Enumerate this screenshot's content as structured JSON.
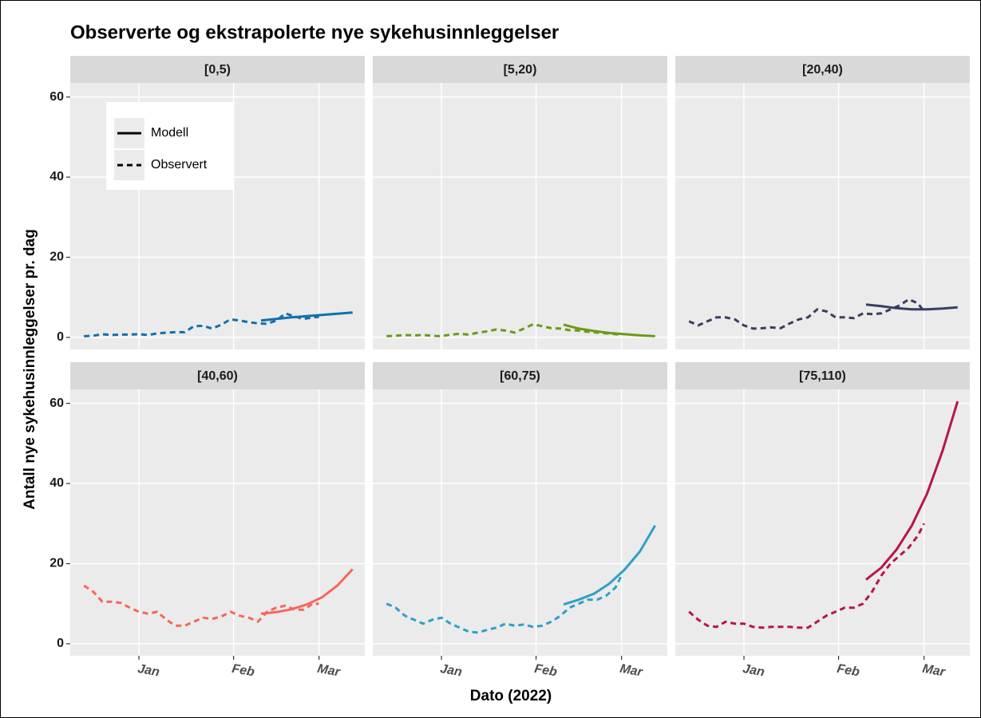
{
  "chart_data": {
    "type": "line",
    "title": "Observerte og ekstrapolerte nye sykehusinnleggelser",
    "x_label": "Dato (2022)",
    "y_label": "Antall nye sykehusinnleggelser pr. dag",
    "legend": "top-left",
    "grid": true,
    "xlim": [
      -22.5,
      74
    ],
    "ylim": [
      -3,
      63.5
    ],
    "xticks": [
      {
        "value": 0,
        "label": "Jan"
      },
      {
        "value": 31,
        "label": "Feb"
      },
      {
        "value": 59,
        "label": "Mar"
      }
    ],
    "yticks": [
      0,
      20,
      40,
      60
    ],
    "panels": [
      {
        "title": "[0,5)",
        "series": [
          {
            "name": "Modell",
            "style": "solid",
            "color": "#1170aa",
            "x": [
              40,
              45,
              50,
              55,
              60,
              65,
              70
            ],
            "values": [
              4.2,
              4.6,
              5.0,
              5.3,
              5.6,
              5.9,
              6.2
            ]
          },
          {
            "name": "Observert",
            "style": "dashed",
            "color": "#1170aa",
            "x": [
              -18,
              -15,
              -12,
              -9,
              -6,
              -3,
              0,
              3,
              6,
              9,
              12,
              15,
              18,
              21,
              24,
              27,
              30,
              33,
              36,
              39,
              42,
              45,
              48,
              51,
              54,
              57,
              59
            ],
            "values": [
              0.3,
              0.4,
              0.8,
              0.6,
              0.7,
              0.7,
              0.8,
              0.6,
              1,
              1.2,
              1.3,
              1.3,
              2.8,
              2.9,
              2.2,
              3.2,
              4.5,
              4.2,
              3.8,
              3.5,
              3.4,
              4.2,
              6,
              5.2,
              4.6,
              5,
              5.1
            ]
          }
        ]
      },
      {
        "title": "[5,20)",
        "series": [
          {
            "name": "Modell",
            "style": "solid",
            "color": "#6b9a1a",
            "x": [
              40,
              45,
              50,
              55,
              60,
              65,
              70
            ],
            "values": [
              3.2,
              2.2,
              1.6,
              1.1,
              0.8,
              0.5,
              0.3
            ]
          },
          {
            "name": "Observert",
            "style": "dashed",
            "color": "#6b9a1a",
            "x": [
              -18,
              -15,
              -12,
              -9,
              -6,
              -3,
              0,
              3,
              6,
              9,
              12,
              15,
              18,
              21,
              24,
              27,
              30,
              33,
              36,
              39,
              42,
              45,
              48,
              51,
              54,
              57,
              59
            ],
            "values": [
              0.3,
              0.4,
              0.6,
              0.5,
              0.6,
              0.4,
              0.3,
              0.7,
              0.9,
              0.7,
              1.2,
              1.5,
              2,
              1.7,
              1.2,
              2.2,
              3.3,
              2.8,
              2.3,
              2.2,
              1.8,
              1.7,
              1.4,
              1.2,
              1.0,
              0.8,
              0.7
            ]
          }
        ]
      },
      {
        "title": "[20,40)",
        "series": [
          {
            "name": "Modell",
            "style": "solid",
            "color": "#383e62",
            "x": [
              40,
              45,
              50,
              55,
              60,
              65,
              70
            ],
            "values": [
              8.2,
              7.8,
              7.3,
              7.0,
              7.0,
              7.2,
              7.5
            ]
          },
          {
            "name": "Observert",
            "style": "dashed",
            "color": "#383e62",
            "x": [
              -18,
              -15,
              -12,
              -9,
              -6,
              -3,
              0,
              3,
              6,
              9,
              12,
              15,
              18,
              21,
              24,
              27,
              30,
              33,
              36,
              39,
              42,
              45,
              48,
              51,
              54,
              57,
              59
            ],
            "values": [
              4,
              3,
              4,
              5,
              5,
              4.5,
              3,
              2.2,
              2.3,
              2.5,
              2.3,
              3.5,
              4.5,
              5,
              7,
              6.5,
              5,
              5,
              4.8,
              6,
              5.8,
              6,
              7,
              8,
              9.5,
              8.5,
              6.5
            ]
          }
        ]
      },
      {
        "title": "[40,60)",
        "series": [
          {
            "name": "Modell",
            "style": "solid",
            "color": "#f8665a",
            "x": [
              40,
              45,
              50,
              55,
              60,
              65,
              70
            ],
            "values": [
              7.5,
              7.9,
              8.6,
              9.8,
              11.6,
              14.5,
              18.6
            ]
          },
          {
            "name": "Observert",
            "style": "dashed",
            "color": "#f8665a",
            "x": [
              -18,
              -15,
              -12,
              -9,
              -6,
              -3,
              0,
              3,
              6,
              9,
              12,
              15,
              18,
              21,
              24,
              27,
              30,
              33,
              36,
              39,
              42,
              45,
              48,
              51,
              54,
              57,
              59
            ],
            "values": [
              14.5,
              13,
              10.5,
              10.5,
              10.2,
              9,
              8,
              7.5,
              8,
              6,
              4.5,
              4.5,
              5.5,
              6.5,
              6.2,
              6.8,
              8,
              7,
              6.5,
              5.5,
              8,
              9,
              9.5,
              8.5,
              8.5,
              10,
              10
            ]
          }
        ]
      },
      {
        "title": "[60,75)",
        "series": [
          {
            "name": "Modell",
            "style": "solid",
            "color": "#30a0c6",
            "x": [
              40,
              45,
              50,
              55,
              60,
              65,
              70
            ],
            "values": [
              9.8,
              11,
              12.5,
              15,
              18.5,
              23,
              29.5
            ]
          },
          {
            "name": "Observert",
            "style": "dashed",
            "color": "#30a0c6",
            "x": [
              -18,
              -15,
              -12,
              -9,
              -6,
              -3,
              0,
              3,
              6,
              9,
              12,
              15,
              18,
              21,
              24,
              27,
              30,
              33,
              36,
              39,
              42,
              45,
              48,
              51,
              54,
              57,
              59
            ],
            "values": [
              10,
              9,
              7,
              6,
              5,
              6,
              6.5,
              5,
              4,
              3,
              2.8,
              3.5,
              4,
              5,
              4.5,
              4.8,
              4.2,
              4.5,
              5.5,
              7,
              9,
              10,
              11,
              11,
              12,
              14,
              17
            ]
          }
        ]
      },
      {
        "title": "[75,110)",
        "series": [
          {
            "name": "Modell",
            "style": "solid",
            "color": "#b5164a",
            "x": [
              40,
              45,
              50,
              55,
              60,
              65,
              70
            ],
            "values": [
              16,
              19,
              23.5,
              29.5,
              37.5,
              48,
              60.5
            ]
          },
          {
            "name": "Observert",
            "style": "dashed",
            "color": "#b5164a",
            "x": [
              -18,
              -15,
              -12,
              -9,
              -6,
              -3,
              0,
              3,
              6,
              9,
              12,
              15,
              18,
              21,
              24,
              27,
              30,
              33,
              36,
              39,
              42,
              45,
              48,
              51,
              54,
              57,
              59
            ],
            "values": [
              8,
              6,
              4.5,
              4.2,
              5.5,
              5,
              5,
              4.2,
              4,
              4.2,
              4.2,
              4.2,
              4,
              4,
              5.5,
              7,
              8,
              9,
              9,
              10,
              13,
              17,
              20,
              22,
              24,
              27,
              30
            ]
          }
        ]
      }
    ]
  }
}
